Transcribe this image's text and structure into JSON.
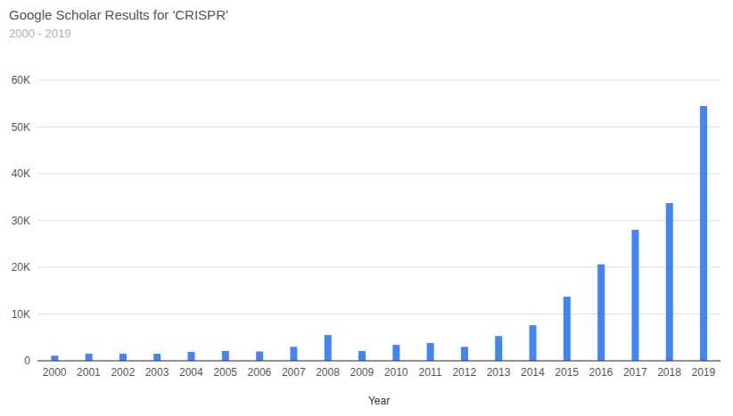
{
  "chart_data": {
    "type": "bar",
    "title": "Google Scholar Results for 'CRISPR'",
    "subtitle": "2000 - 2019",
    "x_label": "Year",
    "categories": [
      "2000",
      "2001",
      "2002",
      "2003",
      "2004",
      "2005",
      "2006",
      "2007",
      "2008",
      "2009",
      "2010",
      "2011",
      "2012",
      "2013",
      "2014",
      "2015",
      "2016",
      "2017",
      "2018",
      "2019"
    ],
    "values": [
      1100,
      1500,
      1500,
      1500,
      1900,
      2100,
      2000,
      3000,
      5500,
      2100,
      3400,
      3800,
      3000,
      5300,
      7600,
      13700,
      20600,
      28000,
      33700,
      54500
    ],
    "color": "#4285f4",
    "ylim": [
      0,
      60000
    ],
    "yticks": [
      0,
      {
        "value": 10000,
        "label": "10K"
      },
      {
        "value": 20000,
        "label": "20K"
      },
      {
        "value": 30000,
        "label": "30K"
      },
      {
        "value": 40000,
        "label": "40K"
      },
      {
        "value": 50000,
        "label": "50K"
      },
      {
        "value": 60000,
        "label": "60K"
      }
    ],
    "grid": true
  }
}
